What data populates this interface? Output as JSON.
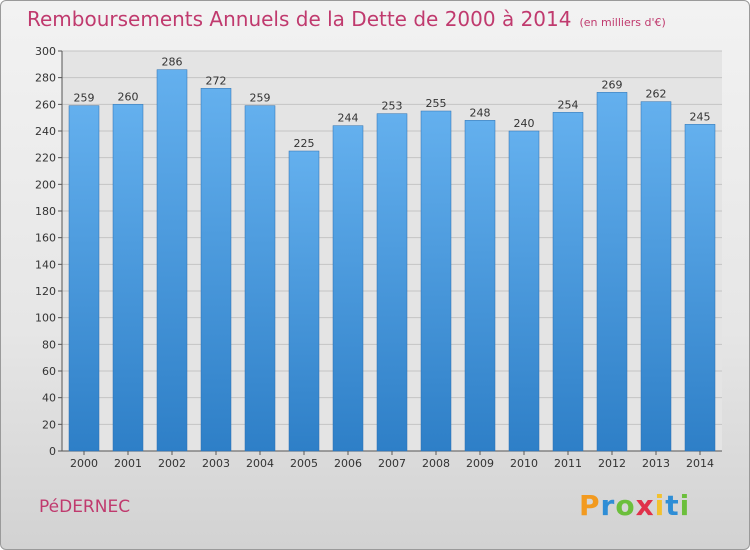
{
  "title": "Remboursements Annuels de la Dette de 2000 à 2014",
  "unit": "(en milliers d'€)",
  "commune": "PéDERNEC",
  "logo": {
    "letters": [
      "P",
      "r",
      "o",
      "x",
      "i",
      "t",
      "i"
    ],
    "colors": [
      "#f29a1f",
      "#2f8ed6",
      "#6cbf3c",
      "#e0314a",
      "#f2c12e",
      "#2f8ed6",
      "#6cbf3c"
    ]
  },
  "colors": {
    "bar_top": "#64b0ee",
    "bar_bottom": "#2e7fc7",
    "title": "#c03a6e"
  },
  "chart_data": {
    "type": "bar",
    "categories": [
      "2000",
      "2001",
      "2002",
      "2003",
      "2004",
      "2005",
      "2006",
      "2007",
      "2008",
      "2009",
      "2010",
      "2011",
      "2012",
      "2013",
      "2014"
    ],
    "values": [
      259,
      260,
      286,
      272,
      259,
      225,
      244,
      253,
      255,
      248,
      240,
      254,
      269,
      262,
      245
    ],
    "title": "Remboursements Annuels de la Dette de 2000 à 2014",
    "ylim": [
      0,
      300
    ],
    "yticks": [
      0,
      20,
      40,
      60,
      80,
      100,
      120,
      140,
      160,
      180,
      200,
      220,
      240,
      260,
      280,
      300
    ],
    "grid": true
  }
}
